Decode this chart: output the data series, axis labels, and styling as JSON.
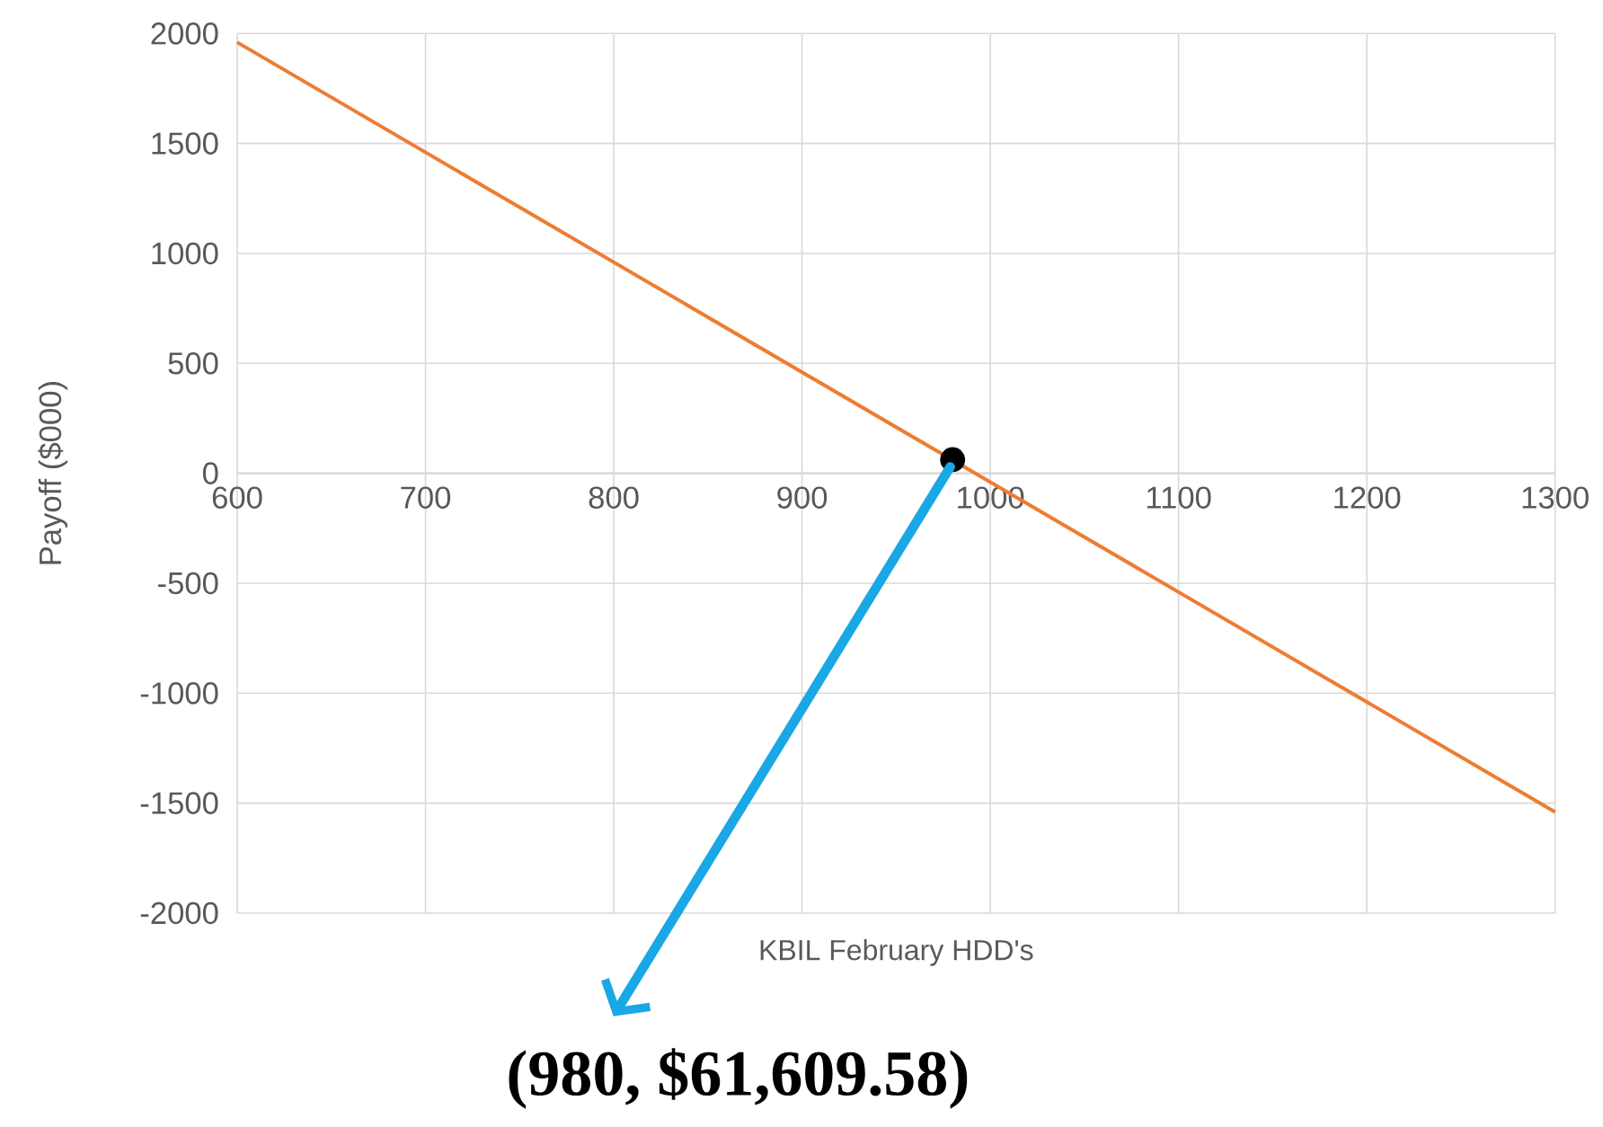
{
  "chart_data": {
    "type": "line",
    "xlabel": "KBIL February HDD's",
    "ylabel": "Payoff ($000)",
    "xlim": [
      600,
      1300
    ],
    "ylim": [
      -2000,
      2000
    ],
    "xticks": [
      600,
      700,
      800,
      900,
      1000,
      1100,
      1200,
      1300
    ],
    "yticks": [
      -2000,
      -1500,
      -1000,
      -500,
      0,
      500,
      1000,
      1500,
      2000
    ],
    "grid": true,
    "series": [
      {
        "color": "#ed7d31",
        "x": [
          600,
          1300
        ],
        "values": [
          1960,
          -1540
        ]
      },
      {
        "type": "scatter",
        "color": "#000000",
        "marker": "circle",
        "x": [
          980
        ],
        "values": [
          62
        ]
      }
    ],
    "annotations": [
      {
        "text": "(980, $61,609.58)",
        "x": 980,
        "y": 62
      }
    ]
  }
}
